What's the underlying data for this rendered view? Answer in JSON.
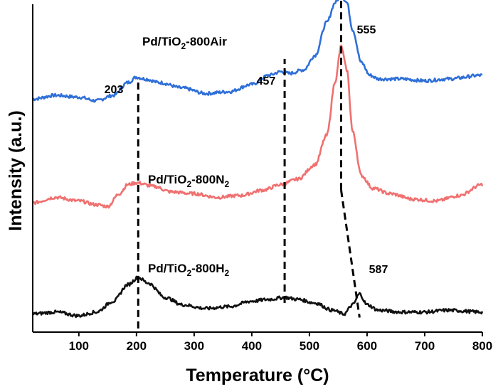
{
  "chart_data": {
    "type": "line",
    "title": "",
    "xlabel": "Temperature",
    "xlabel_unit": "(°C)",
    "ylabel": "Intensity (a.u.)",
    "xlim": [
      20,
      800
    ],
    "ylim": [
      0,
      9
    ],
    "x_ticks": [
      100,
      200,
      300,
      400,
      500,
      600,
      700,
      800
    ],
    "y_ticks_shown": false,
    "grid": false,
    "legend": "none",
    "series": [
      {
        "name": "Pd/TiO₂-800Air",
        "label_main": "Pd/TiO",
        "label_sub": "2",
        "label_rest": "-800Air",
        "color": "#2f6fd8",
        "points": [
          [
            20,
            6.4
          ],
          [
            60,
            6.5
          ],
          [
            100,
            6.45
          ],
          [
            130,
            6.35
          ],
          [
            160,
            6.5
          ],
          [
            185,
            6.85
          ],
          [
            200,
            7.0
          ],
          [
            215,
            6.95
          ],
          [
            240,
            6.85
          ],
          [
            280,
            6.7
          ],
          [
            320,
            6.55
          ],
          [
            360,
            6.6
          ],
          [
            400,
            6.8
          ],
          [
            430,
            7.05
          ],
          [
            450,
            7.15
          ],
          [
            465,
            7.1
          ],
          [
            490,
            7.2
          ],
          [
            510,
            7.6
          ],
          [
            530,
            8.5
          ],
          [
            545,
            9.05
          ],
          [
            555,
            9.25
          ],
          [
            565,
            9.05
          ],
          [
            575,
            8.3
          ],
          [
            590,
            7.4
          ],
          [
            605,
            7.05
          ],
          [
            620,
            6.95
          ],
          [
            660,
            6.95
          ],
          [
            700,
            6.9
          ],
          [
            740,
            6.95
          ],
          [
            800,
            7.05
          ]
        ]
      },
      {
        "name": "Pd/TiO₂-800N₂",
        "label_main": "Pd/TiO",
        "label_sub": "2",
        "label_rest": "-800N",
        "label_sub2": "2",
        "color": "#f07070",
        "points": [
          [
            20,
            3.55
          ],
          [
            60,
            3.7
          ],
          [
            100,
            3.6
          ],
          [
            130,
            3.5
          ],
          [
            150,
            3.45
          ],
          [
            170,
            3.8
          ],
          [
            185,
            4.05
          ],
          [
            200,
            4.1
          ],
          [
            230,
            4.0
          ],
          [
            260,
            3.85
          ],
          [
            300,
            3.8
          ],
          [
            340,
            3.7
          ],
          [
            380,
            3.75
          ],
          [
            420,
            3.9
          ],
          [
            450,
            4.05
          ],
          [
            480,
            4.2
          ],
          [
            510,
            4.6
          ],
          [
            530,
            5.4
          ],
          [
            545,
            6.9
          ],
          [
            555,
            7.85
          ],
          [
            565,
            7.2
          ],
          [
            575,
            5.5
          ],
          [
            590,
            4.3
          ],
          [
            610,
            3.95
          ],
          [
            640,
            3.8
          ],
          [
            680,
            3.65
          ],
          [
            720,
            3.6
          ],
          [
            760,
            3.75
          ],
          [
            800,
            4.05
          ]
        ]
      },
      {
        "name": "Pd/TiO₂-800H₂",
        "label_main": "Pd/TiO",
        "label_sub": "2",
        "label_rest": "-800H",
        "label_sub2": "2",
        "color": "#111111",
        "points": [
          [
            20,
            0.5
          ],
          [
            60,
            0.55
          ],
          [
            100,
            0.45
          ],
          [
            130,
            0.55
          ],
          [
            160,
            0.85
          ],
          [
            185,
            1.3
          ],
          [
            203,
            1.5
          ],
          [
            220,
            1.35
          ],
          [
            250,
            0.95
          ],
          [
            280,
            0.75
          ],
          [
            320,
            0.65
          ],
          [
            360,
            0.7
          ],
          [
            400,
            0.85
          ],
          [
            430,
            0.9
          ],
          [
            457,
            0.95
          ],
          [
            480,
            0.9
          ],
          [
            510,
            0.8
          ],
          [
            540,
            0.6
          ],
          [
            560,
            0.5
          ],
          [
            575,
            0.75
          ],
          [
            587,
            1.05
          ],
          [
            600,
            0.75
          ],
          [
            620,
            0.6
          ],
          [
            660,
            0.55
          ],
          [
            700,
            0.55
          ],
          [
            740,
            0.6
          ],
          [
            800,
            0.55
          ]
        ]
      }
    ],
    "annotations": [
      {
        "text": "203",
        "x": 203,
        "dashed_from": 0.1,
        "dashed_to": 6.85
      },
      {
        "text": "457",
        "x": 457,
        "dashed_from": 0.8,
        "dashed_to": 7.5
      },
      {
        "text": "555",
        "x": 555,
        "dashed_from": 3.9,
        "dashed_to": 9.4
      },
      {
        "text": "587",
        "x": 587,
        "dashed_from": 0.4,
        "dashed_to": 3.9
      }
    ]
  }
}
